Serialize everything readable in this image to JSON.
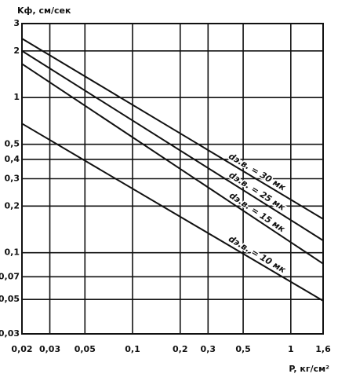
{
  "chart_data": {
    "type": "line",
    "y_label": "Kф, см/сек",
    "x_label": "P, кг/см²",
    "log_x": true,
    "log_y": true,
    "grid": true,
    "xlim": [
      0.02,
      1.6
    ],
    "ylim": [
      0.03,
      3
    ],
    "xticks": [
      {
        "value": 0.02,
        "label": "0,02"
      },
      {
        "value": 0.03,
        "label": "0,03"
      },
      {
        "value": 0.05,
        "label": "0,05"
      },
      {
        "value": 0.1,
        "label": "0,1"
      },
      {
        "value": 0.2,
        "label": "0,2"
      },
      {
        "value": 0.3,
        "label": "0,3"
      },
      {
        "value": 0.5,
        "label": "0,5"
      },
      1,
      {
        "value": 1.6,
        "label": "1,6"
      }
    ],
    "yticks": [
      {
        "value": 0.03,
        "label": "0,03"
      },
      {
        "value": 0.05,
        "label": "0,05"
      },
      {
        "value": 0.07,
        "label": "0,07"
      },
      {
        "value": 0.1,
        "label": "0,1"
      },
      {
        "value": 0.2,
        "label": "0,2"
      },
      {
        "value": 0.3,
        "label": "0,3"
      },
      {
        "value": 0.4,
        "label": "0,4"
      },
      {
        "value": 0.5,
        "label": "0,5"
      },
      1,
      2,
      3
    ],
    "x": [
      0.02,
      1.6
    ],
    "series": [
      {
        "name": "dэ.в. = 30 мк",
        "color": "#111111",
        "values": [
          2.4,
          0.165
        ]
      },
      {
        "name": "dэ.в. = 25 мк",
        "color": "#111111",
        "values": [
          2.0,
          0.12
        ]
      },
      {
        "name": "dэ.в. = 15 мк",
        "color": "#111111",
        "values": [
          1.65,
          0.085
        ]
      },
      {
        "name": "dэ.в. = 10 мк",
        "color": "#111111",
        "values": [
          0.68,
          0.049
        ]
      }
    ]
  }
}
